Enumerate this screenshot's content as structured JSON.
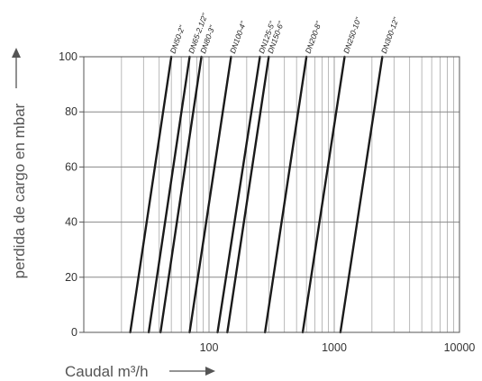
{
  "chart_data": {
    "type": "line",
    "title": "",
    "xlabel": "Caudal  m³/h",
    "ylabel": "perdida de cargo en mbar",
    "x_scale": "log",
    "xlim": [
      10,
      10000
    ],
    "ylim": [
      0,
      100
    ],
    "x_ticks": [
      "100",
      "1000",
      "10000"
    ],
    "y_ticks": [
      "0",
      "20",
      "40",
      "60",
      "80",
      "100"
    ],
    "grid": true,
    "series": [
      {
        "name": "DN50-2\"",
        "x": [
          23.5,
          50
        ],
        "y": [
          0,
          100
        ]
      },
      {
        "name": "DN65-2.1/2\"",
        "x": [
          33,
          70
        ],
        "y": [
          0,
          100
        ]
      },
      {
        "name": "DN80-3\"",
        "x": [
          41,
          87
        ],
        "y": [
          0,
          100
        ]
      },
      {
        "name": "DN100-4\"",
        "x": [
          70,
          150
        ],
        "y": [
          0,
          100
        ]
      },
      {
        "name": "DN125-5\"",
        "x": [
          117,
          255
        ],
        "y": [
          0,
          100
        ]
      },
      {
        "name": "DN150-6\"",
        "x": [
          140,
          300
        ],
        "y": [
          0,
          100
        ]
      },
      {
        "name": "DN200-8\"",
        "x": [
          280,
          600
        ],
        "y": [
          0,
          100
        ]
      },
      {
        "name": "DN250-10\"",
        "x": [
          560,
          1210
        ],
        "y": [
          0,
          100
        ]
      },
      {
        "name": "DN300-12\"",
        "x": [
          1120,
          2420
        ],
        "y": [
          0,
          100
        ]
      }
    ]
  }
}
